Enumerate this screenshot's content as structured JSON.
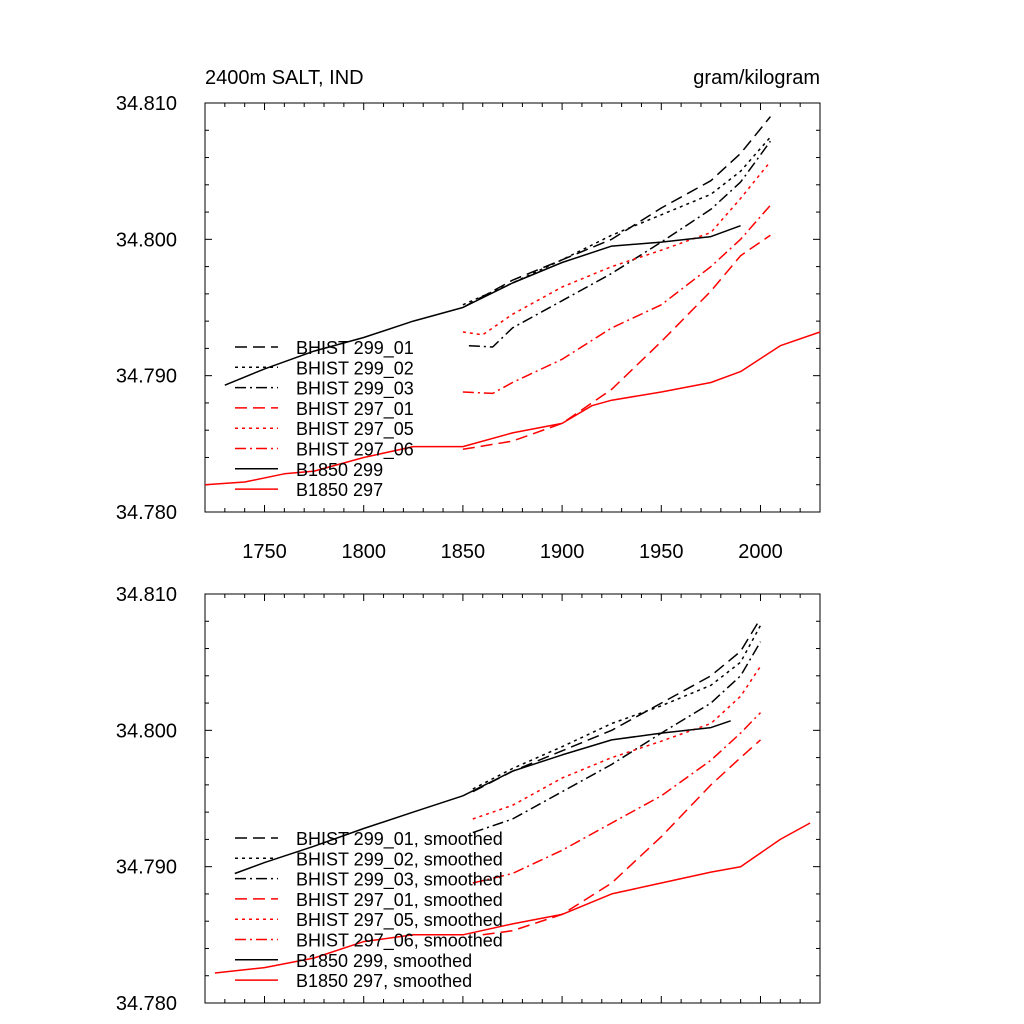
{
  "chart_data": [
    {
      "type": "line",
      "title_left": "2400m SALT, IND",
      "title_right": "gram/kilogram",
      "xlim": [
        1720,
        2030
      ],
      "ylim": [
        34.78,
        34.81
      ],
      "xticks": [
        1750,
        1800,
        1850,
        1900,
        1950,
        2000
      ],
      "xtick_labels": [
        "1750",
        "1800",
        "1850",
        "1900",
        "1950",
        "2000"
      ],
      "yticks": [
        34.78,
        34.79,
        34.8,
        34.81
      ],
      "ytick_labels": [
        "34.780",
        "34.790",
        "34.800",
        "34.810"
      ],
      "legend_position": "bottom-left",
      "series": [
        {
          "name": "BHIST 299_01",
          "color": "#000000",
          "dash": "long-dash",
          "points": [
            [
              1850,
              34.795
            ],
            [
              1875,
              34.797
            ],
            [
              1900,
              34.7985
            ],
            [
              1925,
              34.8
            ],
            [
              1950,
              34.8023
            ],
            [
              1975,
              34.8043
            ],
            [
              1990,
              34.8063
            ],
            [
              2005,
              34.809
            ]
          ]
        },
        {
          "name": "BHIST 299_02",
          "color": "#000000",
          "dash": "dot",
          "points": [
            [
              1850,
              34.7952
            ],
            [
              1875,
              34.7968
            ],
            [
              1900,
              34.7985
            ],
            [
              1925,
              34.8003
            ],
            [
              1950,
              34.8018
            ],
            [
              1975,
              34.8033
            ],
            [
              1990,
              34.805
            ],
            [
              2005,
              34.8075
            ]
          ]
        },
        {
          "name": "BHIST 299_03",
          "color": "#000000",
          "dash": "dash-dot",
          "points": [
            [
              1853,
              34.7922
            ],
            [
              1865,
              34.7921
            ],
            [
              1875,
              34.7935
            ],
            [
              1900,
              34.7955
            ],
            [
              1925,
              34.7975
            ],
            [
              1950,
              34.7998
            ],
            [
              1975,
              34.8022
            ],
            [
              1990,
              34.8042
            ],
            [
              2005,
              34.8072
            ]
          ]
        },
        {
          "name": "BHIST 297_01",
          "color": "#ff0000",
          "dash": "long-dash",
          "points": [
            [
              1850,
              34.7846
            ],
            [
              1875,
              34.7852
            ],
            [
              1900,
              34.7865
            ],
            [
              1925,
              34.789
            ],
            [
              1950,
              34.7925
            ],
            [
              1975,
              34.7962
            ],
            [
              1990,
              34.7988
            ],
            [
              2005,
              34.8003
            ]
          ]
        },
        {
          "name": "BHIST 297_05",
          "color": "#ff0000",
          "dash": "dot",
          "points": [
            [
              1850,
              34.7932
            ],
            [
              1860,
              34.793
            ],
            [
              1875,
              34.7945
            ],
            [
              1900,
              34.7965
            ],
            [
              1925,
              34.798
            ],
            [
              1950,
              34.7992
            ],
            [
              1975,
              34.8005
            ],
            [
              1990,
              34.803
            ],
            [
              2005,
              34.8057
            ]
          ]
        },
        {
          "name": "BHIST 297_06",
          "color": "#ff0000",
          "dash": "dash-dot",
          "points": [
            [
              1850,
              34.7888
            ],
            [
              1865,
              34.7887
            ],
            [
              1875,
              34.7895
            ],
            [
              1900,
              34.7912
            ],
            [
              1925,
              34.7935
            ],
            [
              1950,
              34.7952
            ],
            [
              1975,
              34.798
            ],
            [
              1990,
              34.8
            ],
            [
              2005,
              34.8025
            ]
          ]
        },
        {
          "name": "B1850 299",
          "color": "#000000",
          "dash": "solid",
          "points": [
            [
              1730,
              34.7893
            ],
            [
              1750,
              34.7905
            ],
            [
              1775,
              34.7918
            ],
            [
              1800,
              34.7928
            ],
            [
              1825,
              34.794
            ],
            [
              1850,
              34.795
            ],
            [
              1875,
              34.7968
            ],
            [
              1900,
              34.7983
            ],
            [
              1925,
              34.7995
            ],
            [
              1950,
              34.7998
            ],
            [
              1975,
              34.8002
            ],
            [
              1990,
              34.801
            ]
          ]
        },
        {
          "name": "B1850 297",
          "color": "#ff0000",
          "dash": "solid",
          "points": [
            [
              1720,
              34.782
            ],
            [
              1740,
              34.7822
            ],
            [
              1760,
              34.7828
            ],
            [
              1775,
              34.783
            ],
            [
              1800,
              34.784
            ],
            [
              1825,
              34.7848
            ],
            [
              1850,
              34.7848
            ],
            [
              1875,
              34.7858
            ],
            [
              1900,
              34.7865
            ],
            [
              1915,
              34.7878
            ],
            [
              1925,
              34.7882
            ],
            [
              1950,
              34.7888
            ],
            [
              1975,
              34.7895
            ],
            [
              1990,
              34.7903
            ],
            [
              2010,
              34.7922
            ],
            [
              2030,
              34.7932
            ]
          ]
        }
      ]
    },
    {
      "type": "line",
      "xlim": [
        1720,
        2030
      ],
      "ylim": [
        34.78,
        34.81
      ],
      "yticks": [
        34.78,
        34.79,
        34.8,
        34.81
      ],
      "ytick_labels": [
        "34.780",
        "34.790",
        "34.800",
        "34.810"
      ],
      "legend_position": "bottom-left",
      "series": [
        {
          "name": "BHIST 299_01, smoothed",
          "color": "#000000",
          "dash": "long-dash",
          "points": [
            [
              1855,
              34.7955
            ],
            [
              1875,
              34.797
            ],
            [
              1900,
              34.7985
            ],
            [
              1925,
              34.8
            ],
            [
              1950,
              34.802
            ],
            [
              1975,
              34.804
            ],
            [
              1990,
              34.8058
            ],
            [
              2000,
              34.8082
            ]
          ]
        },
        {
          "name": "BHIST 299_02, smoothed",
          "color": "#000000",
          "dash": "dot",
          "points": [
            [
              1855,
              34.7957
            ],
            [
              1875,
              34.7972
            ],
            [
              1900,
              34.7988
            ],
            [
              1925,
              34.8005
            ],
            [
              1950,
              34.8018
            ],
            [
              1975,
              34.8033
            ],
            [
              1990,
              34.805
            ],
            [
              2000,
              34.8077
            ]
          ]
        },
        {
          "name": "BHIST 299_03, smoothed",
          "color": "#000000",
          "dash": "dash-dot",
          "points": [
            [
              1855,
              34.7925
            ],
            [
              1875,
              34.7935
            ],
            [
              1900,
              34.7955
            ],
            [
              1925,
              34.7975
            ],
            [
              1950,
              34.7998
            ],
            [
              1975,
              34.802
            ],
            [
              1990,
              34.804
            ],
            [
              2000,
              34.8065
            ]
          ]
        },
        {
          "name": "BHIST 297_01, smoothed",
          "color": "#ff0000",
          "dash": "long-dash",
          "points": [
            [
              1860,
              34.785
            ],
            [
              1875,
              34.7853
            ],
            [
              1900,
              34.7865
            ],
            [
              1925,
              34.7888
            ],
            [
              1950,
              34.7922
            ],
            [
              1975,
              34.796
            ],
            [
              1990,
              34.798
            ],
            [
              2000,
              34.7993
            ]
          ]
        },
        {
          "name": "BHIST 297_05, smoothed",
          "color": "#ff0000",
          "dash": "dot",
          "points": [
            [
              1855,
              34.7935
            ],
            [
              1875,
              34.7945
            ],
            [
              1900,
              34.7965
            ],
            [
              1925,
              34.798
            ],
            [
              1950,
              34.7992
            ],
            [
              1975,
              34.8005
            ],
            [
              1990,
              34.8025
            ],
            [
              2000,
              34.8047
            ]
          ]
        },
        {
          "name": "BHIST 297_06, smoothed",
          "color": "#ff0000",
          "dash": "dash-dot",
          "points": [
            [
              1855,
              34.7888
            ],
            [
              1875,
              34.7895
            ],
            [
              1900,
              34.7912
            ],
            [
              1925,
              34.7932
            ],
            [
              1950,
              34.7952
            ],
            [
              1975,
              34.7978
            ],
            [
              1990,
              34.7998
            ],
            [
              2000,
              34.8013
            ]
          ]
        },
        {
          "name": "B1850 299, smoothed",
          "color": "#000000",
          "dash": "solid",
          "points": [
            [
              1735,
              34.7895
            ],
            [
              1750,
              34.7903
            ],
            [
              1775,
              34.7915
            ],
            [
              1800,
              34.7928
            ],
            [
              1825,
              34.794
            ],
            [
              1850,
              34.7952
            ],
            [
              1875,
              34.797
            ],
            [
              1900,
              34.7982
            ],
            [
              1925,
              34.7993
            ],
            [
              1950,
              34.7998
            ],
            [
              1975,
              34.8002
            ],
            [
              1985,
              34.8007
            ]
          ]
        },
        {
          "name": "B1850 297, smoothed",
          "color": "#ff0000",
          "dash": "solid",
          "points": [
            [
              1725,
              34.7822
            ],
            [
              1750,
              34.7826
            ],
            [
              1775,
              34.7833
            ],
            [
              1800,
              34.7845
            ],
            [
              1825,
              34.785
            ],
            [
              1850,
              34.785
            ],
            [
              1875,
              34.7858
            ],
            [
              1900,
              34.7865
            ],
            [
              1925,
              34.788
            ],
            [
              1950,
              34.7888
            ],
            [
              1975,
              34.7896
            ],
            [
              1990,
              34.79
            ],
            [
              2010,
              34.792
            ],
            [
              2025,
              34.7932
            ]
          ]
        }
      ]
    }
  ]
}
